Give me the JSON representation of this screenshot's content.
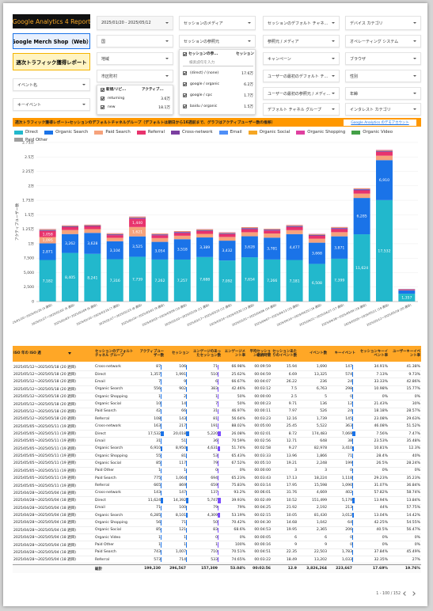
{
  "header": {
    "title": "Google Analytics 4 Report",
    "property": "Google Merch Shop（Web）",
    "report_name": "週次トラフィック獲得レポート"
  },
  "left_controls": [
    "イベント名",
    "キーイベント"
  ],
  "date_range": "2025/01/20 - 2025/05/12",
  "filters": {
    "column_2": [
      "国",
      "地域",
      "市区町村"
    ],
    "column_3": [
      "セッションのメディア",
      "セッションの参照元"
    ],
    "column_4": [
      "セッションのデフォルト チャネ...",
      "参照元 / メディア",
      "キャンペーン",
      "ユーザーの最初のデフォルト チ...",
      "ユーザーの最初の参照元 / メディ...",
      "デフォルト チャネル グループ"
    ],
    "column_5": [
      "デバイス カテゴリ",
      "オペレーティング システム",
      "ブラウザ",
      "性別",
      "年齢",
      "インタレスト カテゴリ"
    ]
  },
  "user_type_dropdown": {
    "header": "新規/リピ...",
    "metric": "アクティブ...",
    "items": [
      {
        "label": "returning",
        "value": "3.6万"
      },
      {
        "label": "new",
        "value": "18.1万"
      }
    ]
  },
  "source_dropdown": {
    "header": "セッションの参...",
    "metric": "セッション",
    "search": "検索語句を入力",
    "items": [
      {
        "label": "(direct) / (none)",
        "value": "17.6万"
      },
      {
        "label": "google / organic",
        "value": "6.2万"
      },
      {
        "label": "google / cpc",
        "value": "1.7万"
      },
      {
        "label": "baidu / organic",
        "value": "1.5万"
      }
    ]
  },
  "chart_section": {
    "title": "週次トラフィック獲得レポート・セッションのデフォルトチャネルグループ（デフォルトは期日から16週前まで、グラフはアクティブユーザー数の推移）",
    "link": "Google Analytics のデモアカウント"
  },
  "chart_data": {
    "type": "bar",
    "stacked": true,
    "y_axis_label": "アクティブユーザー数",
    "grid": true,
    "categories": [
      "2025/01/20〜2025/01/26 (4 週目)",
      "2025/01/27〜2025/02/02 (5 週目)",
      "2025/02/03〜2025/02/09 (6 週目)",
      "2025/02/10〜2025/02/16 (7 週目)",
      "2025/02/17〜2025/02/23 (8 週目)",
      "2025/02/24〜2025/03/02 (9 週目)",
      "2025/03/03〜2025/03/09 (10 週目)",
      "2025/03/10〜2025/03/16 (11 週目)",
      "2025/03/17〜2025/03/23 (12 週目)",
      "2025/03/24〜2025/03/30 (13 週目)",
      "2025/03/31〜2025/04/06 (14 週目)",
      "2025/04/07〜2025/04/13 (15 週目)",
      "2025/04/14〜2025/04/20 (16 週目)",
      "2025/04/21〜2025/04/27 (17 週目)",
      "2025/04/28〜2025/05/04 (18 週目)",
      "2025/05/05〜2025/05/11 (19 週目)",
      "2025/05/12〜2025/05/18 (20 週目)"
    ],
    "ylim": [
      0,
      27500
    ],
    "yticks": [
      0,
      {
        "value": 2500,
        "label": "2,500"
      },
      {
        "value": 5000,
        "label": "5,000"
      },
      {
        "value": 7500,
        "label": "7,500"
      },
      {
        "value": 10000,
        "label": "1万"
      },
      {
        "value": 12500,
        "label": "1.25万"
      },
      {
        "value": 15000,
        "label": "1.5万"
      },
      {
        "value": 17500,
        "label": "1.75万"
      },
      {
        "value": 20000,
        "label": "2万"
      },
      {
        "value": 22500,
        "label": "2.25万"
      },
      {
        "value": 25000,
        "label": "2.5万"
      },
      {
        "value": 27500,
        "label": "2.75万"
      }
    ],
    "series": [
      {
        "name": "Direct",
        "color": "#22b8cc",
        "values": [
          7182,
          8405,
          8241,
          7316,
          7739,
          7262,
          7257,
          7688,
          7092,
          7654,
          7266,
          7181,
          6508,
          7399,
          11624,
          17532,
          1357
        ],
        "value_labels": [
          "7,182",
          "8,405",
          "8,241",
          "7,316",
          "7,739",
          "7,262",
          "7,257",
          "7,688",
          "7,092",
          "7,654",
          "7,266",
          "7,181",
          "6,508",
          "7,399",
          "11,624",
          "17,532",
          "1,357"
        ]
      },
      {
        "name": "Organic Search",
        "color": "#1a73e8",
        "values": [
          2871,
          3262,
          3628,
          3104,
          3525,
          3054,
          3518,
          3389,
          3432,
          3628,
          3781,
          4477,
          3668,
          3871,
          6285,
          6910,
          556
        ],
        "value_labels": [
          "2,871",
          "3,262",
          "3,628",
          "3,104",
          "3,525",
          "3,054",
          "3,518",
          "3,389",
          "3,432",
          "3,628",
          "3,781",
          "4,477",
          "3,668",
          "3,871",
          "6,285",
          "6,910",
          null
        ]
      },
      {
        "name": "Paid Search",
        "color": "#f6a27c",
        "values": [
          1095,
          700,
          650,
          600,
          1621,
          650,
          600,
          620,
          640,
          700,
          720,
          680,
          690,
          720,
          743,
          775,
          42
        ],
        "value_labels": [
          "1,095",
          null,
          null,
          null,
          "1,621",
          null,
          null,
          null,
          null,
          null,
          null,
          null,
          null,
          null,
          null,
          null,
          null
        ]
      },
      {
        "name": "Referral",
        "color": "#e8336d",
        "values": [
          1058,
          500,
          480,
          450,
          1440,
          480,
          470,
          500,
          490,
          520,
          510,
          530,
          500,
          540,
          573,
          665,
          108
        ],
        "value_labels": [
          "1,058",
          null,
          null,
          null,
          "1,440",
          null,
          null,
          null,
          null,
          null,
          null,
          null,
          null,
          null,
          null,
          null,
          null
        ]
      },
      {
        "name": "Cross-network",
        "color": "#7b3fa0",
        "values": [
          150,
          140,
          130,
          150,
          160,
          140,
          150,
          140,
          150,
          160,
          150,
          170,
          150,
          160,
          143,
          163,
          87
        ]
      },
      {
        "name": "Email",
        "color": "#4f8ff7",
        "values": [
          40,
          35,
          30,
          40,
          45,
          35,
          40,
          35,
          40,
          45,
          40,
          50,
          40,
          45,
          71,
          31,
          7
        ]
      },
      {
        "name": "Organic Social",
        "color": "#f5a623",
        "values": [
          90,
          80,
          85,
          90,
          95,
          80,
          85,
          90,
          85,
          90,
          80,
          95,
          85,
          90,
          85,
          85,
          10
        ]
      },
      {
        "name": "Organic Shopping",
        "color": "#e040a0",
        "values": [
          50,
          45,
          50,
          55,
          60,
          45,
          50,
          50,
          55,
          50,
          45,
          60,
          50,
          55,
          56,
          55,
          1
        ]
      },
      {
        "name": "Organic Video",
        "color": "#43a047",
        "values": [
          0,
          0,
          0,
          0,
          0,
          0,
          0,
          0,
          0,
          0,
          0,
          0,
          0,
          0,
          1,
          0,
          0
        ]
      },
      {
        "name": "Paid Other",
        "color": "#9e9e9e",
        "values": [
          0,
          0,
          0,
          0,
          0,
          0,
          0,
          0,
          0,
          0,
          0,
          0,
          0,
          0,
          1,
          1,
          0
        ]
      }
    ]
  },
  "table": {
    "columns": [
      "ISO 年の ISO 週",
      "セッションのデフォルト チャネル グループ",
      "アクティブユーザー数",
      "セッション",
      "エンゲージのあったセッション数",
      "エンゲージメント率",
      "平均セッション継続時間",
      "セッションあたりのイベント数",
      "イベント数",
      "キーイベント",
      "セッションキーイベント率",
      "ユーザーキーイベント率"
    ],
    "rows": [
      [
        "2025/05/12〜2025/05/18 (20 週目)",
        "Cross-network",
        "87",
        "106",
        "71",
        "66.98%",
        "00:09:59",
        "15.94",
        "1,690",
        "147",
        "34.91%",
        "41.38%"
      ],
      [
        "2025/05/12〜2025/05/18 (20 週目)",
        "Direct",
        "1,357",
        "1,991",
        "510",
        "25.62%",
        "00:04:59",
        "6.69",
        "13,325",
        "574",
        "7.13%",
        "9.73%"
      ],
      [
        "2025/05/12〜2025/05/18 (20 週目)",
        "Email",
        "7",
        "9",
        "6",
        "66.67%",
        "00:04:07",
        "26.22",
        "236",
        "24",
        "33.33%",
        "42.86%"
      ],
      [
        "2025/05/12〜2025/05/18 (20 週目)",
        "Organic Search",
        "556",
        "902",
        "383",
        "42.46%",
        "00:03:12",
        "7.5",
        "6,763",
        "298",
        "10.98%",
        "15.77%"
      ],
      [
        "2025/05/12〜2025/05/18 (20 週目)",
        "Organic Shopping",
        "1",
        "2",
        "1",
        "50%",
        "00:00:00",
        "2.5",
        "5",
        "0",
        "0%",
        "0%"
      ],
      [
        "2025/05/12〜2025/05/18 (20 週目)",
        "Organic Social",
        "10",
        "14",
        "7",
        "50%",
        "00:00:23",
        "9.71",
        "136",
        "12",
        "21.43%",
        "30%"
      ],
      [
        "2025/05/12〜2025/05/18 (20 週目)",
        "Paid Search",
        "42",
        "66",
        "31",
        "46.97%",
        "00:00:11",
        "7.97",
        "526",
        "24",
        "18.18%",
        "28.57%"
      ],
      [
        "2025/05/12〜2025/05/18 (20 週目)",
        "Referral",
        "108",
        "143",
        "81",
        "56.64%",
        "00:03:23",
        "12.16",
        "1,739",
        "145",
        "23.08%",
        "29.63%"
      ],
      [
        "2025/05/05〜2025/05/11 (19 週目)",
        "Cross-network",
        "163",
        "217",
        "191",
        "88.02%",
        "00:05:00",
        "25.45",
        "5,522",
        "363",
        "46.08%",
        "51.52%"
      ],
      [
        "2025/05/05〜2025/05/11 (19 週目)",
        "Direct",
        "17,532",
        "20,018",
        "5,220",
        "26.08%",
        "00:02:01",
        "8.72",
        "174,483",
        "7,069",
        "7.56%",
        "7.47%"
      ],
      [
        "2025/05/05〜2025/05/11 (19 週目)",
        "Email",
        "31",
        "51",
        "36",
        "70.59%",
        "00:02:56",
        "12.71",
        "648",
        "38",
        "23.53%",
        "35.48%"
      ],
      [
        "2025/05/05〜2025/05/11 (19 週目)",
        "Organic Search",
        "6,910",
        "8,950",
        "4,631",
        "51.74%",
        "00:02:58",
        "9.27",
        "82,978",
        "3,410",
        "10.81%",
        "12.3%"
      ],
      [
        "2025/05/05〜2025/05/11 (19 週目)",
        "Organic Shopping",
        "55",
        "81",
        "53",
        "65.43%",
        "00:03:33",
        "13.96",
        "1,866",
        "71",
        "28.4%",
        "40%"
      ],
      [
        "2025/05/05〜2025/05/11 (19 週目)",
        "Organic Social",
        "85",
        "117",
        "79",
        "67.52%",
        "00:05:10",
        "19.21",
        "2,248",
        "199",
        "26.5%",
        "28.24%"
      ],
      [
        "2025/05/05〜2025/05/11 (19 週目)",
        "Paid Other",
        "1",
        "1",
        "0",
        "0%",
        "00:00:00",
        "3",
        "3",
        "0",
        "0%",
        "0%"
      ],
      [
        "2025/05/05〜2025/05/11 (19 週目)",
        "Paid Search",
        "775",
        "1,064",
        "694",
        "65.23%",
        "00:03:43",
        "17.13",
        "18,224",
        "1,118",
        "29.23%",
        "35.23%"
      ],
      [
        "2025/05/05〜2025/05/11 (19 週目)",
        "Referral",
        "665",
        "869",
        "659",
        "75.83%",
        "00:03:14",
        "17.95",
        "15,598",
        "1,090",
        "31.07%",
        "36.84%"
      ],
      [
        "2025/04/28〜2025/05/04 (18 週目)",
        "Cross-network",
        "143",
        "147",
        "137",
        "93.2%",
        "00:06:01",
        "31.76",
        "4,669",
        "402",
        "57.82%",
        "58.74%"
      ],
      [
        "2025/04/28〜2025/05/04 (18 週目)",
        "Direct",
        "11,624",
        "14,392",
        "5,747",
        "39.93%",
        "00:02:49",
        "10.52",
        "151,499",
        "5,179",
        "13.94%",
        "13.84%"
      ],
      [
        "2025/04/28〜2025/05/04 (18 週目)",
        "Email",
        "71",
        "100",
        "79",
        "79%",
        "00:04:25",
        "21.92",
        "2,192",
        "213",
        "44%",
        "57.75%"
      ],
      [
        "2025/04/28〜2025/05/04 (18 週目)",
        "Organic Search",
        "6,285",
        "8,101",
        "4,309",
        "53.19%",
        "00:02:15",
        "10.05",
        "81,430",
        "3,012",
        "13.04%",
        "14.42%"
      ],
      [
        "2025/04/28〜2025/05/04 (18 週目)",
        "Organic Shopping",
        "56",
        "71",
        "50",
        "70.42%",
        "00:04:30",
        "14.68",
        "1,042",
        "64",
        "42.25%",
        "54.55%"
      ],
      [
        "2025/04/28〜2025/05/04 (18 週目)",
        "Organic Social",
        "85",
        "121",
        "83",
        "68.6%",
        "00:04:53",
        "19.95",
        "2,365",
        "206",
        "40.5%",
        "56.47%"
      ],
      [
        "2025/04/28〜2025/05/04 (18 週目)",
        "Organic Video",
        "1",
        "1",
        "0",
        "0%",
        "00:00:05",
        "6",
        "6",
        "0",
        "0%",
        "0%"
      ],
      [
        "2025/04/28〜2025/05/04 (18 週目)",
        "Paid Other",
        "1",
        "1",
        "1",
        "100%",
        "00:00:16",
        "9",
        "9",
        "0",
        "0%",
        "0%"
      ],
      [
        "2025/04/28〜2025/05/04 (18 週目)",
        "Paid Search",
        "743",
        "1,007",
        "710",
        "70.51%",
        "00:04:51",
        "22.35",
        "22,503",
        "1,783",
        "37.84%",
        "45.49%"
      ],
      [
        "2025/04/28〜2025/05/04 (18 週目)",
        "Referral",
        "573",
        "714",
        "533",
        "74.65%",
        "00:03:22",
        "18.49",
        "13,202",
        "1,033",
        "32.35%",
        "27%"
      ]
    ],
    "total_label": "総計",
    "total": [
      "199,230",
      "296,567",
      "157,309",
      "53.04%",
      "00:02:56",
      "12.9",
      "3,826,264",
      "223,667",
      "17.69%",
      "19.76%"
    ],
    "pagination": "1 - 100 / 152"
  }
}
